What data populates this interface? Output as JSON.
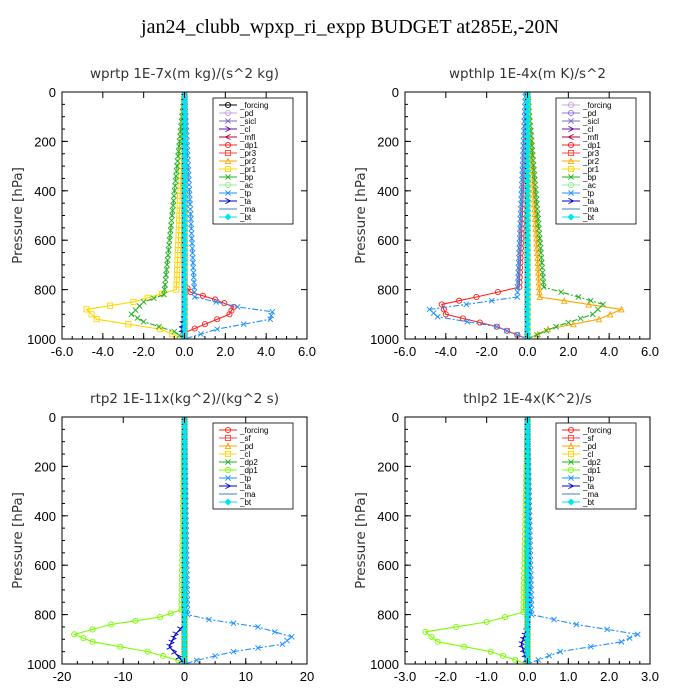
{
  "figure_title": "jan24_clubb_wpxp_ri_expp  BUDGET at285E,-20N",
  "chart_data": [
    {
      "type": "line",
      "title": "wprtp   1E-7x(m kg)/(s^2 kg)",
      "ylabel": "Pressure [hPa]",
      "xlim": [
        -6,
        6
      ],
      "ylim": [
        1000,
        0
      ],
      "xticks": [
        "-6.0",
        "-4.0",
        "-2.0",
        "0.0",
        "2.0",
        "4.0",
        "6.0"
      ],
      "yticks": [
        "0",
        "200",
        "400",
        "600",
        "800",
        "1000"
      ],
      "legend_position": "top-right",
      "series": [
        {
          "name": "_forcing",
          "color": "#000000",
          "marker": "o",
          "x": [
            0,
            0,
            0,
            0
          ],
          "y": [
            0,
            300,
            700,
            1000
          ]
        },
        {
          "name": "_pd",
          "color": "#c8a0e0",
          "marker": "o",
          "x": [
            0,
            0
          ],
          "y": [
            0,
            1000
          ]
        },
        {
          "name": "_sicl",
          "color": "#7b68c0",
          "marker": "x",
          "x": [
            0,
            0
          ],
          "y": [
            0,
            1000
          ]
        },
        {
          "name": "_cl",
          "color": "#6a0dad",
          "marker": ">",
          "x": [
            0,
            0
          ],
          "y": [
            0,
            1000
          ]
        },
        {
          "name": "_mfl",
          "color": "#b0003a",
          "marker": "<",
          "x": [
            0,
            0
          ],
          "y": [
            0,
            1000
          ]
        },
        {
          "name": "_dp1",
          "color": "#ff2020",
          "marker": "o",
          "x": [
            0,
            0,
            0.3,
            1.5,
            2.4,
            2.2,
            1.0,
            0,
            0
          ],
          "y": [
            0,
            780,
            810,
            840,
            870,
            900,
            940,
            975,
            1000
          ]
        },
        {
          "name": "_pr3",
          "color": "#ff4040",
          "marker": "s",
          "x": [
            0,
            0
          ],
          "y": [
            0,
            1000
          ]
        },
        {
          "name": "_pr2",
          "color": "#ffa500",
          "marker": "^",
          "x": [
            0,
            0
          ],
          "y": [
            0,
            1000
          ]
        },
        {
          "name": "_pr1",
          "color": "#ffd700",
          "marker": "s",
          "x": [
            0,
            -0.4,
            -2.5,
            -4.8,
            -4.3,
            -1.2,
            0
          ],
          "y": [
            0,
            800,
            850,
            880,
            920,
            960,
            1000
          ]
        },
        {
          "name": "_bp",
          "color": "#20b020",
          "marker": "x",
          "x": [
            0,
            -1.0,
            -2.0,
            -2.6,
            -2.0,
            -0.5,
            0
          ],
          "y": [
            0,
            820,
            850,
            900,
            930,
            970,
            1000
          ]
        },
        {
          "name": "_ac",
          "color": "#90ee90",
          "marker": "o",
          "x": [
            0,
            0
          ],
          "y": [
            0,
            1000
          ]
        },
        {
          "name": "_tp",
          "color": "#1e90ff",
          "marker": "x",
          "x": [
            0,
            0.5,
            2.6,
            4.3,
            4.2,
            1.6,
            0
          ],
          "y": [
            0,
            830,
            870,
            890,
            920,
            960,
            1000
          ]
        },
        {
          "name": "_ta",
          "color": "#0000cd",
          "marker": ">",
          "x": [
            0,
            0,
            -0.15,
            0
          ],
          "y": [
            0,
            900,
            960,
            1000
          ]
        },
        {
          "name": "_ma",
          "color": "#4682b4",
          "marker": "-",
          "x": [
            0,
            0
          ],
          "y": [
            0,
            1000
          ]
        },
        {
          "name": "_bt",
          "color": "#00e5ee",
          "marker": "D",
          "x": [
            0,
            0
          ],
          "y": [
            0,
            1000
          ]
        }
      ]
    },
    {
      "type": "line",
      "title": "wpthlp   1E-4x(m K)/s^2",
      "ylabel": "Pressure [hPa]",
      "xlim": [
        -6,
        6
      ],
      "ylim": [
        1000,
        0
      ],
      "xticks": [
        "-6.0",
        "-4.0",
        "-2.0",
        "0.0",
        "2.0",
        "4.0",
        "6.0"
      ],
      "yticks": [
        "0",
        "200",
        "400",
        "600",
        "800",
        "1000"
      ],
      "legend_position": "top-right",
      "series": [
        {
          "name": "_forcing",
          "color": "#c8a0e0",
          "marker": "o",
          "x": [
            0,
            0
          ],
          "y": [
            0,
            1000
          ]
        },
        {
          "name": "_pd",
          "color": "#9370db",
          "marker": "o",
          "x": [
            0,
            0
          ],
          "y": [
            0,
            1000
          ]
        },
        {
          "name": "_sicl",
          "color": "#7b68c0",
          "marker": "x",
          "x": [
            0,
            0
          ],
          "y": [
            0,
            1000
          ]
        },
        {
          "name": "_cl",
          "color": "#6a0dad",
          "marker": ">",
          "x": [
            0,
            0
          ],
          "y": [
            0,
            1000
          ]
        },
        {
          "name": "_mfl",
          "color": "#b0003a",
          "marker": "<",
          "x": [
            0,
            0
          ],
          "y": [
            0,
            1000
          ]
        },
        {
          "name": "_dp1",
          "color": "#ff2020",
          "marker": "o",
          "x": [
            0,
            -0.4,
            -2.5,
            -4.2,
            -4.0,
            -1.5,
            0
          ],
          "y": [
            0,
            790,
            830,
            860,
            900,
            950,
            1000
          ]
        },
        {
          "name": "_pr3",
          "color": "#ff4040",
          "marker": "s",
          "x": [
            0,
            0
          ],
          "y": [
            0,
            1000
          ]
        },
        {
          "name": "_pr2",
          "color": "#ffa500",
          "marker": "^",
          "x": [
            0,
            0.6,
            3.0,
            4.6,
            3.5,
            1.0,
            0
          ],
          "y": [
            0,
            830,
            860,
            880,
            920,
            960,
            1000
          ]
        },
        {
          "name": "_pr1",
          "color": "#ffd700",
          "marker": "s",
          "x": [
            0,
            0
          ],
          "y": [
            0,
            1000
          ]
        },
        {
          "name": "_bp",
          "color": "#20b020",
          "marker": "x",
          "x": [
            0,
            0.8,
            2.5,
            3.7,
            3.2,
            1.4,
            0
          ],
          "y": [
            0,
            790,
            830,
            860,
            900,
            950,
            1000
          ]
        },
        {
          "name": "_ac",
          "color": "#90ee90",
          "marker": "o",
          "x": [
            0,
            0
          ],
          "y": [
            0,
            1000
          ]
        },
        {
          "name": "_tp",
          "color": "#1e90ff",
          "marker": "x",
          "x": [
            -0.1,
            -0.5,
            -3.0,
            -4.8,
            -4.4,
            -1.5,
            0
          ],
          "y": [
            0,
            830,
            860,
            880,
            910,
            950,
            1000
          ]
        },
        {
          "name": "_ta",
          "color": "#0000cd",
          "marker": ">",
          "x": [
            0,
            0
          ],
          "y": [
            0,
            1000
          ]
        },
        {
          "name": "_ma",
          "color": "#4682b4",
          "marker": "-",
          "x": [
            0,
            0
          ],
          "y": [
            0,
            1000
          ]
        },
        {
          "name": "_bt",
          "color": "#00e5ee",
          "marker": "D",
          "x": [
            0,
            0
          ],
          "y": [
            0,
            1000
          ]
        }
      ]
    },
    {
      "type": "line",
      "title": "rtp2   1E-11x(kg^2)/(kg^2 s)",
      "ylabel": "Pressure [hPa]",
      "xlim": [
        -20,
        20
      ],
      "ylim": [
        1000,
        0
      ],
      "xticks": [
        "-20",
        "-10",
        "0",
        "10",
        "20"
      ],
      "yticks": [
        "0",
        "200",
        "400",
        "600",
        "800",
        "1000"
      ],
      "legend_position": "top-right",
      "series": [
        {
          "name": "_forcing",
          "color": "#ff2020",
          "marker": "o",
          "x": [
            0,
            0
          ],
          "y": [
            0,
            1000
          ]
        },
        {
          "name": "_sf",
          "color": "#ff4040",
          "marker": "s",
          "x": [
            0,
            0
          ],
          "y": [
            0,
            1000
          ]
        },
        {
          "name": "_pd",
          "color": "#ffa500",
          "marker": "^",
          "x": [
            0,
            0
          ],
          "y": [
            0,
            1000
          ]
        },
        {
          "name": "_cl",
          "color": "#ffd700",
          "marker": "s",
          "x": [
            0,
            0
          ],
          "y": [
            0,
            1000
          ]
        },
        {
          "name": "_dp2",
          "color": "#20b020",
          "marker": "x",
          "x": [
            0,
            0
          ],
          "y": [
            0,
            1000
          ]
        },
        {
          "name": "_dp1",
          "color": "#7cfc00",
          "marker": "o",
          "x": [
            0,
            -0.5,
            -4.0,
            -12.0,
            -18.0,
            -15.0,
            -6.0,
            -1.0,
            0
          ],
          "y": [
            0,
            780,
            810,
            840,
            880,
            910,
            950,
            985,
            1000
          ]
        },
        {
          "name": "_tp",
          "color": "#1e90ff",
          "marker": "x",
          "x": [
            0,
            0.5,
            4.0,
            12.0,
            17.5,
            16.0,
            8.0,
            2.0,
            0
          ],
          "y": [
            0,
            800,
            820,
            850,
            890,
            920,
            950,
            985,
            1000
          ]
        },
        {
          "name": "_ta",
          "color": "#0000cd",
          "marker": ">",
          "x": [
            0,
            0,
            -1.5,
            -2.5,
            -1.0,
            0
          ],
          "y": [
            0,
            840,
            880,
            930,
            970,
            1000
          ]
        },
        {
          "name": "_ma",
          "color": "#4682b4",
          "marker": "-",
          "x": [
            0,
            0
          ],
          "y": [
            0,
            1000
          ]
        },
        {
          "name": "_bt",
          "color": "#00e5ee",
          "marker": "D",
          "x": [
            0,
            0
          ],
          "y": [
            0,
            1000
          ]
        }
      ]
    },
    {
      "type": "line",
      "title": "thlp2   1E-4x(K^2)/s",
      "ylabel": "Pressure [hPa]",
      "xlim": [
        -3,
        3
      ],
      "ylim": [
        1000,
        0
      ],
      "xticks": [
        "-3.0",
        "-2.0",
        "-1.0",
        "0.0",
        "1.0",
        "2.0",
        "3.0"
      ],
      "yticks": [
        "0",
        "200",
        "400",
        "600",
        "800",
        "1000"
      ],
      "legend_position": "top-right",
      "series": [
        {
          "name": "_forcing",
          "color": "#ff2020",
          "marker": "o",
          "x": [
            0,
            0
          ],
          "y": [
            0,
            1000
          ]
        },
        {
          "name": "_sf",
          "color": "#ff4040",
          "marker": "s",
          "x": [
            0,
            0
          ],
          "y": [
            0,
            1000
          ]
        },
        {
          "name": "_pd",
          "color": "#ffa500",
          "marker": "^",
          "x": [
            0,
            0
          ],
          "y": [
            0,
            1000
          ]
        },
        {
          "name": "_cl",
          "color": "#ffd700",
          "marker": "s",
          "x": [
            0,
            0
          ],
          "y": [
            0,
            1000
          ]
        },
        {
          "name": "_dp2",
          "color": "#20b020",
          "marker": "x",
          "x": [
            0,
            0
          ],
          "y": [
            0,
            1000
          ]
        },
        {
          "name": "_dp1",
          "color": "#7cfc00",
          "marker": "o",
          "x": [
            0,
            -0.1,
            -1.0,
            -2.5,
            -2.2,
            -0.9,
            0
          ],
          "y": [
            0,
            790,
            830,
            870,
            910,
            950,
            1000
          ]
        },
        {
          "name": "_tp",
          "color": "#1e90ff",
          "marker": "x",
          "x": [
            0,
            0.1,
            1.2,
            2.7,
            2.3,
            0.8,
            0
          ],
          "y": [
            0,
            800,
            840,
            880,
            910,
            950,
            1000
          ]
        },
        {
          "name": "_ta",
          "color": "#0000cd",
          "marker": ">",
          "x": [
            0,
            0,
            -0.15,
            0
          ],
          "y": [
            0,
            850,
            920,
            1000
          ]
        },
        {
          "name": "_ma",
          "color": "#4682b4",
          "marker": "-",
          "x": [
            0,
            0
          ],
          "y": [
            0,
            1000
          ]
        },
        {
          "name": "_bt",
          "color": "#00e5ee",
          "marker": "D",
          "x": [
            0,
            0
          ],
          "y": [
            0,
            1000
          ]
        }
      ]
    }
  ]
}
